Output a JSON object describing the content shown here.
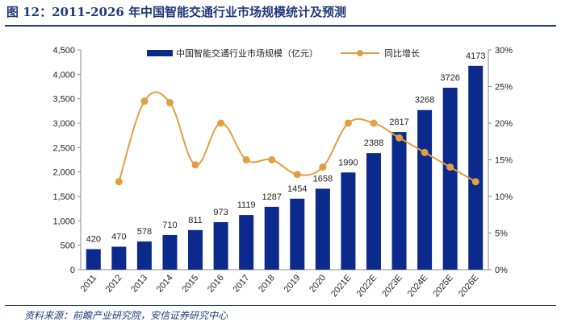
{
  "figure": {
    "title": "图 12：2011-2026 年中国智能交通行业市场规模统计及预测",
    "source": "资料来源：前瞻产业研究院，安信证券研究中心"
  },
  "colors": {
    "bar": "#0c2a8c",
    "line": "#e0a040",
    "title": "#1f3a7a",
    "axis": "#888888",
    "text": "#222222"
  },
  "chart_data": {
    "type": "bar",
    "categories": [
      "2011",
      "2012",
      "2013",
      "2014",
      "2015",
      "2016",
      "2017",
      "2018",
      "2019",
      "2020",
      "2021E",
      "2022E",
      "2023E",
      "2024E",
      "2025E",
      "2026E"
    ],
    "series": [
      {
        "name": "中国智能交通行业市场规模（亿元）",
        "type": "bar",
        "axis": "left",
        "values": [
          420,
          470,
          578,
          710,
          811,
          973,
          1119,
          1287,
          1454,
          1658,
          1990,
          2388,
          2817,
          3268,
          3726,
          4173
        ]
      },
      {
        "name": "同比增长",
        "type": "line",
        "axis": "right",
        "values": [
          null,
          0.12,
          0.23,
          0.228,
          0.143,
          0.2,
          0.15,
          0.15,
          0.13,
          0.14,
          0.2,
          0.2,
          0.18,
          0.16,
          0.14,
          0.12
        ]
      }
    ],
    "ylim_left": [
      0,
      4500
    ],
    "yticks_left": [
      "0",
      "500",
      "1,000",
      "1,500",
      "2,000",
      "2,500",
      "3,000",
      "3,500",
      "4,000",
      "4,500"
    ],
    "ylim_right": [
      0,
      0.3
    ],
    "yticks_right": [
      "0%",
      "5%",
      "10%",
      "15%",
      "20%",
      "25%",
      "30%"
    ],
    "data_labels": [
      "420",
      "470",
      "578",
      "710",
      "811",
      "973",
      "1119",
      "1287",
      "1454",
      "1658",
      "1990",
      "2388",
      "2817",
      "3268",
      "3726",
      "4173"
    ],
    "legend_position": "top",
    "grid": false
  }
}
